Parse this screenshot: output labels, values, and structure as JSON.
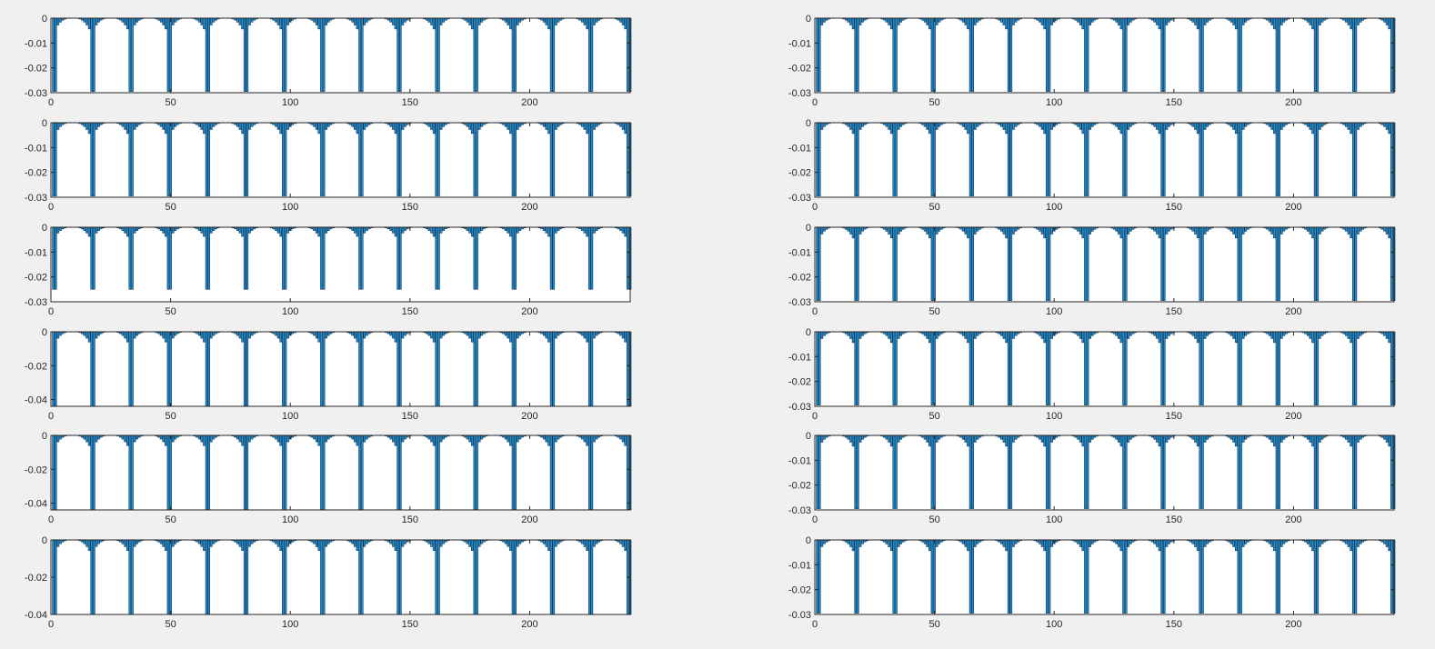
{
  "figure": {
    "background": "#f0f0f0",
    "axes_color": "#262626",
    "bar_fill": "#1a8fd6",
    "bar_edge": "#12253a"
  },
  "chart_data": [
    {
      "type": "bar",
      "panel": "left-1",
      "xlim": [
        0,
        242
      ],
      "ylim": [
        -0.03,
        0
      ],
      "xticks": [
        0,
        50,
        100,
        150,
        200
      ],
      "xtick_labels": [
        "0",
        "50",
        "100",
        "150",
        "200"
      ],
      "yticks": [
        0,
        -0.01,
        -0.02,
        -0.03
      ],
      "ytick_labels": [
        "0",
        "-0.01",
        "-0.02",
        "-0.03"
      ],
      "pattern": {
        "n": 242,
        "period": 16,
        "spike_offsets": [
          0,
          1
        ],
        "spike_value": -0.0295,
        "trough_value": -0.0065,
        "offset": 0
      }
    },
    {
      "type": "bar",
      "panel": "left-2",
      "xlim": [
        0,
        242
      ],
      "ylim": [
        -0.03,
        0
      ],
      "xticks": [
        0,
        50,
        100,
        150,
        200
      ],
      "xtick_labels": [
        "0",
        "50",
        "100",
        "150",
        "200"
      ],
      "yticks": [
        0,
        -0.01,
        -0.02,
        -0.03
      ],
      "ytick_labels": [
        "0",
        "-0.01",
        "-0.02",
        "-0.03"
      ],
      "pattern": {
        "n": 242,
        "period": 16,
        "spike_offsets": [
          0,
          1
        ],
        "spike_value": -0.0295,
        "trough_value": -0.0065,
        "offset": 0
      }
    },
    {
      "type": "bar",
      "panel": "left-3",
      "xlim": [
        0,
        242
      ],
      "ylim": [
        -0.03,
        0
      ],
      "xticks": [
        0,
        50,
        100,
        150,
        200
      ],
      "xtick_labels": [
        "0",
        "50",
        "100",
        "150",
        "200"
      ],
      "yticks": [
        0,
        -0.01,
        -0.02,
        -0.03
      ],
      "ytick_labels": [
        "0",
        "-0.01",
        "-0.02",
        "-0.03"
      ],
      "pattern": {
        "n": 242,
        "period": 16,
        "spike_offsets": [
          0,
          1
        ],
        "spike_value": -0.025,
        "trough_value": -0.0055,
        "offset": 0
      }
    },
    {
      "type": "bar",
      "panel": "left-4",
      "xlim": [
        0,
        242
      ],
      "ylim": [
        -0.044,
        0
      ],
      "xticks": [
        0,
        50,
        100,
        150,
        200
      ],
      "xtick_labels": [
        "0",
        "50",
        "100",
        "150",
        "200"
      ],
      "yticks": [
        0,
        -0.02,
        -0.04
      ],
      "ytick_labels": [
        "0",
        "-0.02",
        "-0.04"
      ],
      "pattern": {
        "n": 242,
        "period": 16,
        "spike_offsets": [
          0,
          1
        ],
        "spike_value": -0.044,
        "trough_value": -0.009,
        "offset": 0
      }
    },
    {
      "type": "bar",
      "panel": "left-5",
      "xlim": [
        0,
        242
      ],
      "ylim": [
        -0.044,
        0
      ],
      "xticks": [
        0,
        50,
        100,
        150,
        200
      ],
      "xtick_labels": [
        "0",
        "50",
        "100",
        "150",
        "200"
      ],
      "yticks": [
        0,
        -0.02,
        -0.04
      ],
      "ytick_labels": [
        "0",
        "-0.02",
        "-0.04"
      ],
      "pattern": {
        "n": 242,
        "period": 16,
        "spike_offsets": [
          0,
          1
        ],
        "spike_value": -0.044,
        "trough_value": -0.009,
        "offset": 0
      }
    },
    {
      "type": "bar",
      "panel": "left-6",
      "xlim": [
        0,
        242
      ],
      "ylim": [
        -0.04,
        0
      ],
      "xticks": [
        0,
        50,
        100,
        150,
        200
      ],
      "xtick_labels": [
        "0",
        "50",
        "100",
        "150",
        "200"
      ],
      "yticks": [
        0,
        -0.02,
        -0.04
      ],
      "ytick_labels": [
        "0",
        "-0.02",
        "-0.04"
      ],
      "pattern": {
        "n": 242,
        "period": 16,
        "spike_offsets": [
          0,
          1
        ],
        "spike_value": -0.04,
        "trough_value": -0.0085,
        "offset": 0
      }
    },
    {
      "type": "bar",
      "panel": "right-1",
      "xlim": [
        0,
        242
      ],
      "ylim": [
        -0.03,
        0
      ],
      "xticks": [
        0,
        50,
        100,
        150,
        200
      ],
      "xtick_labels": [
        "0",
        "50",
        "100",
        "150",
        "200"
      ],
      "yticks": [
        0,
        -0.01,
        -0.02,
        -0.03
      ],
      "ytick_labels": [
        "0",
        "-0.01",
        "-0.02",
        "-0.03"
      ],
      "pattern": {
        "n": 242,
        "period": 16,
        "spike_offsets": [
          0,
          1
        ],
        "spike_value": -0.0295,
        "trough_value": -0.0065,
        "offset": 0
      }
    },
    {
      "type": "bar",
      "panel": "right-2",
      "xlim": [
        0,
        242
      ],
      "ylim": [
        -0.03,
        0
      ],
      "xticks": [
        0,
        50,
        100,
        150,
        200
      ],
      "xtick_labels": [
        "0",
        "50",
        "100",
        "150",
        "200"
      ],
      "yticks": [
        0,
        -0.01,
        -0.02,
        -0.03
      ],
      "ytick_labels": [
        "0",
        "-0.01",
        "-0.02",
        "-0.03"
      ],
      "pattern": {
        "n": 242,
        "period": 16,
        "spike_offsets": [
          0,
          1
        ],
        "spike_value": -0.0295,
        "trough_value": -0.0065,
        "offset": 0
      }
    },
    {
      "type": "bar",
      "panel": "right-3",
      "xlim": [
        0,
        242
      ],
      "ylim": [
        -0.03,
        0
      ],
      "xticks": [
        0,
        50,
        100,
        150,
        200
      ],
      "xtick_labels": [
        "0",
        "50",
        "100",
        "150",
        "200"
      ],
      "yticks": [
        0,
        -0.01,
        -0.02,
        -0.03
      ],
      "ytick_labels": [
        "0",
        "-0.01",
        "-0.02",
        "-0.03"
      ],
      "pattern": {
        "n": 242,
        "period": 16,
        "spike_offsets": [
          0,
          1
        ],
        "spike_value": -0.0295,
        "trough_value": -0.0065,
        "offset": 0
      }
    },
    {
      "type": "bar",
      "panel": "right-4",
      "xlim": [
        0,
        242
      ],
      "ylim": [
        -0.03,
        0
      ],
      "xticks": [
        0,
        50,
        100,
        150,
        200
      ],
      "xtick_labels": [
        "0",
        "50",
        "100",
        "150",
        "200"
      ],
      "yticks": [
        0,
        -0.01,
        -0.02,
        -0.03
      ],
      "ytick_labels": [
        "0",
        "-0.01",
        "-0.02",
        "-0.03"
      ],
      "pattern": {
        "n": 242,
        "period": 16,
        "spike_offsets": [
          0,
          1
        ],
        "spike_value": -0.0295,
        "trough_value": -0.0065,
        "offset": 0
      }
    },
    {
      "type": "bar",
      "panel": "right-5",
      "xlim": [
        0,
        242
      ],
      "ylim": [
        -0.03,
        0
      ],
      "xticks": [
        0,
        50,
        100,
        150,
        200
      ],
      "xtick_labels": [
        "0",
        "50",
        "100",
        "150",
        "200"
      ],
      "yticks": [
        0,
        -0.01,
        -0.02,
        -0.03
      ],
      "ytick_labels": [
        "0",
        "-0.01",
        "-0.02",
        "-0.03"
      ],
      "pattern": {
        "n": 242,
        "period": 16,
        "spike_offsets": [
          0,
          1
        ],
        "spike_value": -0.0295,
        "trough_value": -0.0065,
        "offset": 0
      }
    },
    {
      "type": "bar",
      "panel": "right-6",
      "xlim": [
        0,
        242
      ],
      "ylim": [
        -0.03,
        0
      ],
      "xticks": [
        0,
        50,
        100,
        150,
        200
      ],
      "xtick_labels": [
        "0",
        "50",
        "100",
        "150",
        "200"
      ],
      "yticks": [
        0,
        -0.01,
        -0.02,
        -0.03
      ],
      "ytick_labels": [
        "0",
        "-0.01",
        "-0.02",
        "-0.03"
      ],
      "pattern": {
        "n": 242,
        "period": 16,
        "spike_offsets": [
          0,
          1
        ],
        "spike_value": -0.0295,
        "trough_value": -0.0065,
        "offset": 0
      }
    }
  ]
}
